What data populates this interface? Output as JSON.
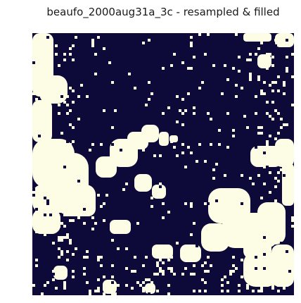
{
  "title": "beaufo_2000aug31a_3c - resampled & filled",
  "colors": {
    "background": "#0d0a3a",
    "foreground": "#fdfde6"
  },
  "image": {
    "description_class": "binary-mask-heatmap",
    "colormap": [
      "#0d0a3a",
      "#fdfde6"
    ],
    "axes_visible": false
  }
}
